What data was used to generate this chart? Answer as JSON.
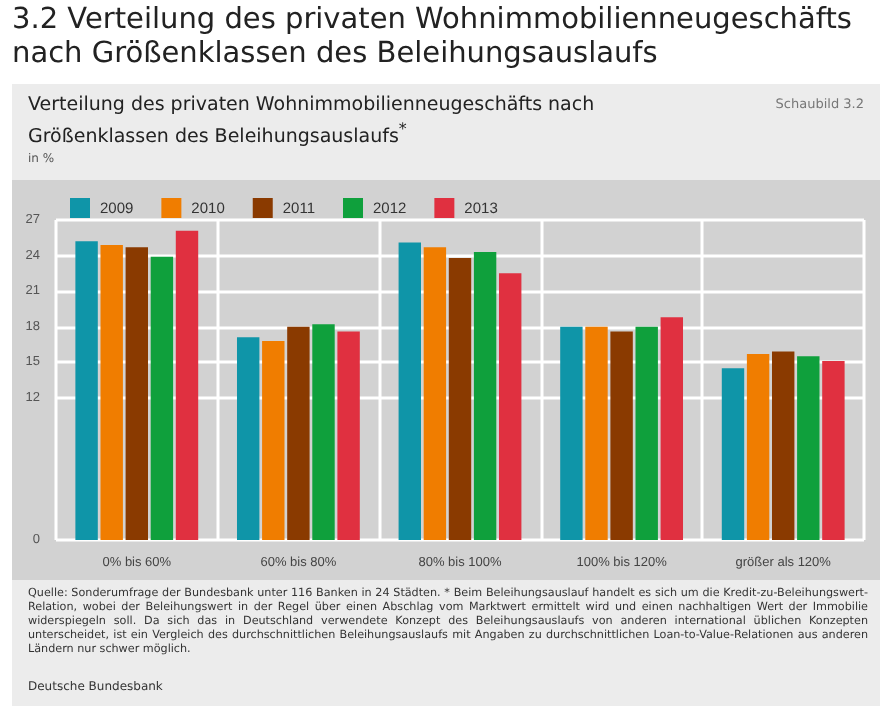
{
  "chart_data": {
    "type": "bar",
    "title": "3.2 Verteilung des privaten Wohnimmobilienneugeschäfts nach Größenklassen des Beleihungsauslaufs",
    "subtitle": "Verteilung des privaten Wohnimmobilienneugeschäfts nach Größenklassen des Beleihungsauslaufs$^{*}$",
    "ylabel": "in %",
    "annotations": [
      "Schaubild 3.2",
      "Quelle: Sonderumfrage der Bundesbank unter 116 Banken in 24 Städten. * Beim Beleihungsauslauf handelt es sich um die Kredit-zu-Beleihungswert-Relation, wobei der Beleihungswert in der Regel über einen Abschlag vom Marktwert ermittelt wird und einen nachhaltigen Wert der Immobilie widerspiegeln soll. Da sich das in Deutschland verwendete Konzept des Beleihungsauslaufs von anderen international üblichen Konzepten unterscheidet, ist ein Vergleich des durchschnittlichen Beleihungsauslaufs mit Angaben zu durchschnittlichen Loan-to-Value-Relationen aus anderen Ländern nur schwer möglich.",
      "Deutsche Bundesbank"
    ],
    "categories": [
      "0% bis 60%",
      "60% bis 80%",
      "80% bis 100%",
      "100% bis 120%",
      "größer als 120%"
    ],
    "series": [
      {
        "name": "2009",
        "color": "#0f95a8",
        "values": [
          25.2,
          17.1,
          25.1,
          18.0,
          14.5
        ]
      },
      {
        "name": "2010",
        "color": "#f07d00",
        "values": [
          24.9,
          16.8,
          24.7,
          18.0,
          15.7
        ]
      },
      {
        "name": "2011",
        "color": "#8a3a00",
        "values": [
          24.7,
          18.0,
          23.8,
          17.6,
          15.9
        ]
      },
      {
        "name": "2012",
        "color": "#0fa03c",
        "values": [
          23.9,
          18.2,
          24.3,
          18.0,
          15.5
        ]
      },
      {
        "name": "2013",
        "color": "#e03040",
        "values": [
          26.1,
          17.6,
          22.5,
          18.8,
          15.1
        ]
      }
    ],
    "ylim": [
      0,
      27
    ],
    "yticks": [
      0,
      12,
      15,
      18,
      21,
      24,
      27
    ],
    "grid": true,
    "legend": "top left"
  }
}
